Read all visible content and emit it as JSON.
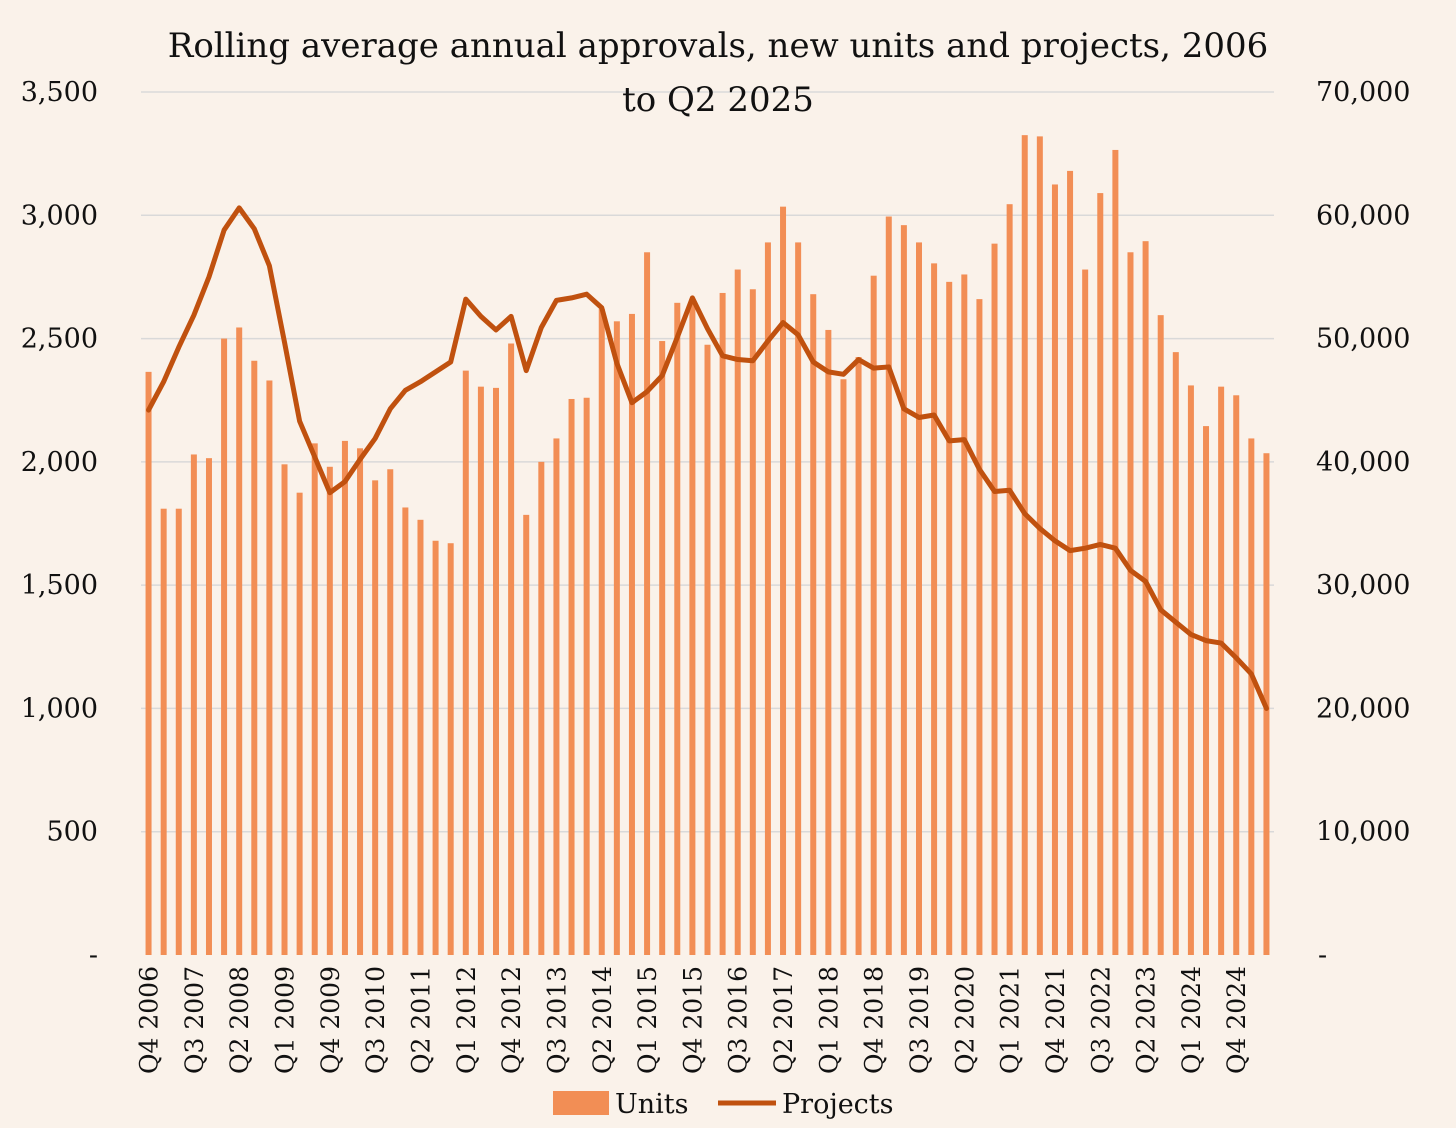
{
  "chart_data": {
    "type": "bar",
    "title_lines": [
      "Rolling average annual approvals, new units and projects, 2006",
      "to Q2 2025"
    ],
    "xlabel": "",
    "ylabel": "",
    "y2label": "",
    "ylim": [
      0,
      3500
    ],
    "y2lim": [
      0,
      70000
    ],
    "y_ticks": [
      0,
      500,
      1000,
      1500,
      2000,
      2500,
      3000,
      3500
    ],
    "y_tick_labels": [
      "-",
      "500",
      "1,000",
      "1,500",
      "2,000",
      "2,500",
      "3,000",
      "3,500"
    ],
    "y2_ticks": [
      0,
      10000,
      20000,
      30000,
      40000,
      50000,
      60000,
      70000
    ],
    "y2_tick_labels": [
      "-",
      "10,000",
      "20,000",
      "30,000",
      "40,000",
      "50,000",
      "60,000",
      "70,000"
    ],
    "grid": true,
    "legend_position": "bottom",
    "colors": {
      "units": "#f28e55",
      "projects": "#c0510f",
      "grid": "#d9d9d9",
      "background": "#faf2ea"
    },
    "categories": [
      "Q4 2006",
      "Q1 2007",
      "Q2 2007",
      "Q3 2007",
      "Q4 2007",
      "Q1 2008",
      "Q2 2008",
      "Q3 2008",
      "Q4 2008",
      "Q1 2009",
      "Q2 2009",
      "Q3 2009",
      "Q4 2009",
      "Q1 2010",
      "Q2 2010",
      "Q3 2010",
      "Q4 2010",
      "Q1 2011",
      "Q2 2011",
      "Q3 2011",
      "Q4 2011",
      "Q1 2012",
      "Q2 2012",
      "Q3 2012",
      "Q4 2012",
      "Q1 2013",
      "Q2 2013",
      "Q3 2013",
      "Q4 2013",
      "Q1 2014",
      "Q2 2014",
      "Q3 2014",
      "Q4 2014",
      "Q1 2015",
      "Q2 2015",
      "Q3 2015",
      "Q4 2015",
      "Q1 2016",
      "Q2 2016",
      "Q3 2016",
      "Q4 2016",
      "Q1 2017",
      "Q2 2017",
      "Q3 2017",
      "Q4 2017",
      "Q1 2018",
      "Q2 2018",
      "Q3 2018",
      "Q4 2018",
      "Q1 2019",
      "Q2 2019",
      "Q3 2019",
      "Q4 2019",
      "Q1 2020",
      "Q2 2020",
      "Q3 2020",
      "Q4 2020",
      "Q1 2021",
      "Q2 2021",
      "Q3 2021",
      "Q4 2021",
      "Q1 2022",
      "Q2 2022",
      "Q3 2022",
      "Q4 2022",
      "Q1 2023",
      "Q2 2023",
      "Q3 2023",
      "Q4 2023",
      "Q1 2024",
      "Q2 2024",
      "Q3 2024",
      "Q4 2024",
      "Q1 2025",
      "Q2 2025"
    ],
    "x_tick_labels": [
      "Q4 2006",
      "Q3 2007",
      "Q2 2008",
      "Q1 2009",
      "Q4 2009",
      "Q3 2010",
      "Q2 2011",
      "Q1 2012",
      "Q4 2012",
      "Q3 2013",
      "Q2 2014",
      "Q1 2015",
      "Q4 2015",
      "Q3 2016",
      "Q2 2017",
      "Q1 2018",
      "Q4 2018",
      "Q3 2019",
      "Q2 2020",
      "Q1 2021",
      "Q4 2021",
      "Q3 2022",
      "Q2 2023",
      "Q1 2024",
      "Q4 2024"
    ],
    "series": [
      {
        "name": "Units",
        "type": "bar",
        "axis": "left",
        "values": [
          2365,
          1810,
          1810,
          2030,
          2015,
          2500,
          2545,
          2410,
          2330,
          1990,
          1875,
          2075,
          1980,
          2085,
          2055,
          1925,
          1970,
          1815,
          1765,
          1680,
          1670,
          2370,
          2305,
          2300,
          2480,
          1785,
          2000,
          2095,
          2255,
          2260,
          2620,
          2570,
          2600,
          2850,
          2490,
          2645,
          2660,
          2475,
          2685,
          2780,
          2700,
          2890,
          3035,
          2890,
          2680,
          2535,
          2335,
          2425,
          2755,
          2995,
          2960,
          2890,
          2805,
          2730,
          2760,
          2660,
          2885,
          3045,
          3325,
          3320,
          3125,
          3180,
          2780,
          3090,
          3265,
          2850,
          2895,
          2595,
          2445,
          2310,
          2145,
          2305,
          2270,
          2095,
          2035
        ]
      },
      {
        "name": "Projects",
        "type": "line",
        "axis": "right",
        "values": [
          44200,
          46500,
          49300,
          51900,
          55000,
          58800,
          60600,
          58900,
          55900,
          49700,
          43300,
          40400,
          37500,
          38400,
          40200,
          41900,
          44300,
          45800,
          46500,
          47300,
          48100,
          53200,
          51800,
          50700,
          51800,
          47400,
          50900,
          53100,
          53300,
          53600,
          52500,
          48000,
          44800,
          45700,
          47000,
          50100,
          53300,
          50800,
          48600,
          48300,
          48200,
          49800,
          51300,
          50300,
          48100,
          47300,
          47100,
          48300,
          47600,
          47700,
          44300,
          43600,
          43800,
          41700,
          41800,
          39400,
          37600,
          37700,
          35800,
          34600,
          33600,
          32800,
          33000,
          33300,
          33000,
          31200,
          30300,
          28000,
          27000,
          26000,
          25500,
          25300,
          24100,
          22800,
          20000
        ]
      }
    ]
  },
  "legend": {
    "items": [
      {
        "label": "Units",
        "kind": "bar"
      },
      {
        "label": "Projects",
        "kind": "line"
      }
    ]
  }
}
